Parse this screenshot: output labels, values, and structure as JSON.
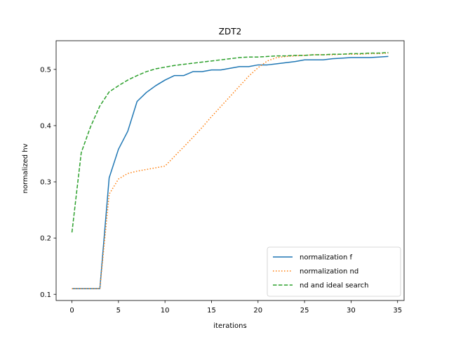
{
  "chart_data": {
    "type": "line",
    "title": "ZDT2",
    "xlabel": "iterations",
    "ylabel": "normalized hv",
    "xlim": [
      -1.7,
      35.7
    ],
    "ylim": [
      0.089,
      0.551
    ],
    "xticks": [
      0,
      5,
      10,
      15,
      20,
      25,
      30,
      35
    ],
    "yticks": [
      0.1,
      0.2,
      0.3,
      0.4,
      0.5
    ],
    "ytick_labels": [
      "0.1",
      "0.2",
      "0.3",
      "0.4",
      "0.5"
    ],
    "grid": false,
    "legend_position": "lower right",
    "x": [
      0,
      1,
      2,
      3,
      4,
      5,
      6,
      7,
      8,
      9,
      10,
      11,
      12,
      13,
      14,
      15,
      16,
      17,
      18,
      19,
      20,
      21,
      22,
      23,
      24,
      25,
      26,
      27,
      28,
      29,
      30,
      31,
      32,
      33,
      34
    ],
    "series": [
      {
        "name": "normalization f",
        "color": "#1f77b4",
        "style": "solid",
        "values": [
          0.11,
          0.11,
          0.11,
          0.11,
          0.307,
          0.358,
          0.39,
          0.443,
          0.459,
          0.471,
          0.481,
          0.489,
          0.489,
          0.496,
          0.496,
          0.499,
          0.499,
          0.502,
          0.505,
          0.505,
          0.508,
          0.508,
          0.51,
          0.512,
          0.514,
          0.517,
          0.517,
          0.517,
          0.519,
          0.52,
          0.521,
          0.521,
          0.521,
          0.522,
          0.523
        ]
      },
      {
        "name": "normalization nd",
        "color": "#ff7f0e",
        "style": "dotted",
        "values": [
          0.11,
          0.11,
          0.11,
          0.11,
          0.278,
          0.305,
          0.315,
          0.319,
          0.322,
          0.325,
          0.328,
          0.345,
          0.362,
          0.379,
          0.397,
          0.416,
          0.434,
          0.452,
          0.47,
          0.488,
          0.503,
          0.515,
          0.521,
          0.523,
          0.524,
          0.525,
          0.526,
          0.526,
          0.526,
          0.527,
          0.527,
          0.527,
          0.528,
          0.528,
          0.529
        ]
      },
      {
        "name": "nd and ideal search",
        "color": "#2ca02c",
        "style": "dashed",
        "values": [
          0.21,
          0.352,
          0.398,
          0.435,
          0.46,
          0.471,
          0.481,
          0.489,
          0.496,
          0.501,
          0.504,
          0.507,
          0.509,
          0.511,
          0.513,
          0.515,
          0.517,
          0.519,
          0.521,
          0.522,
          0.522,
          0.523,
          0.524,
          0.524,
          0.525,
          0.525,
          0.526,
          0.526,
          0.527,
          0.527,
          0.528,
          0.528,
          0.529,
          0.529,
          0.53
        ]
      }
    ]
  }
}
